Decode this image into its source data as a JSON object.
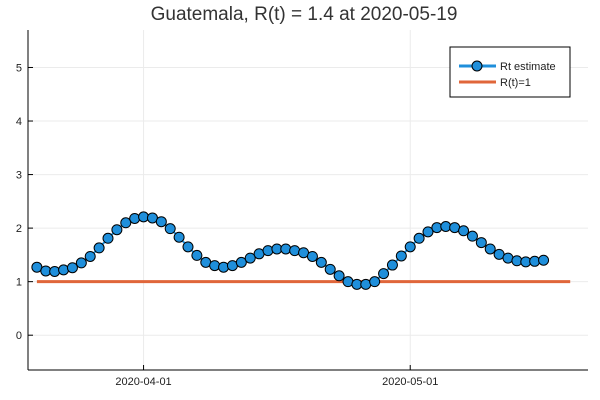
{
  "chart_data": {
    "type": "line",
    "title": "Guatemala, R(t) = 1.4 at 2020-05-19",
    "xlabel": "",
    "ylabel": "",
    "x_start": "2020-03-20",
    "x_end": "2020-05-19",
    "xlim": [
      "2020-03-19",
      "2020-05-21"
    ],
    "ylim": [
      -0.65,
      5.7
    ],
    "x_ticks": [
      "2020-04-01",
      "2020-05-01"
    ],
    "y_ticks": [
      0,
      1,
      2,
      3,
      4,
      5
    ],
    "grid": true,
    "legend_position": "top-right",
    "colors": {
      "rt": "#1f8fdb",
      "rt_marker_edge": "#000000",
      "ref": "#e0663a",
      "axis": "#000000",
      "grid": "#ebebeb"
    },
    "series": [
      {
        "name": "Rt estimate",
        "style": "line-marker",
        "values": [
          1.27,
          1.2,
          1.19,
          1.22,
          1.26,
          1.35,
          1.47,
          1.63,
          1.81,
          1.97,
          2.1,
          2.18,
          2.21,
          2.19,
          2.12,
          1.99,
          1.83,
          1.65,
          1.49,
          1.36,
          1.3,
          1.27,
          1.3,
          1.36,
          1.44,
          1.52,
          1.58,
          1.61,
          1.61,
          1.58,
          1.54,
          1.47,
          1.36,
          1.23,
          1.11,
          1.0,
          0.95,
          0.95,
          1.0,
          1.15,
          1.31,
          1.48,
          1.65,
          1.81,
          1.93,
          2.01,
          2.03,
          2.01,
          1.95,
          1.85,
          1.73,
          1.61,
          1.51,
          1.44,
          1.39,
          1.37,
          1.38,
          1.4
        ]
      },
      {
        "name": "R(t)=1",
        "style": "line",
        "values": [
          1,
          1
        ]
      }
    ]
  }
}
